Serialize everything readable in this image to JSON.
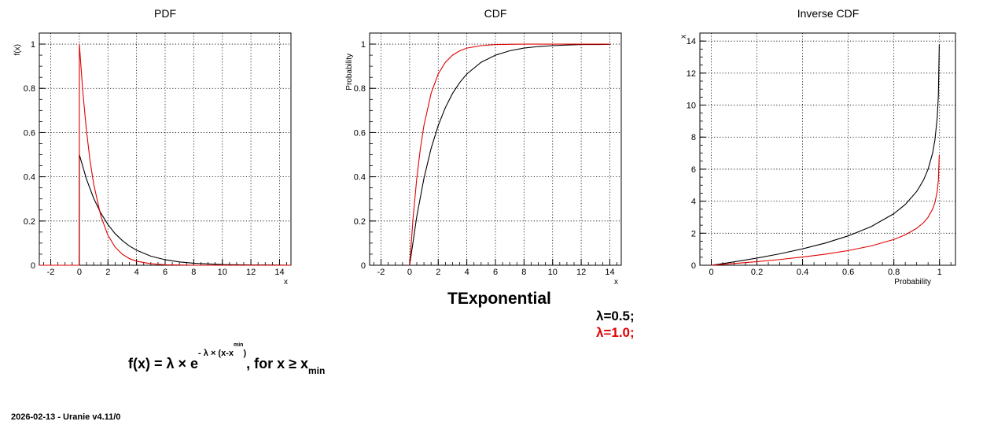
{
  "chart_data": [
    {
      "type": "line",
      "title": "PDF",
      "xlabel": "x",
      "ylabel": "f(x)",
      "xlim": [
        -2.8,
        14.8
      ],
      "ylim": [
        0,
        1.05
      ],
      "grid": true,
      "x_ticks": [
        -2,
        0,
        2,
        4,
        6,
        8,
        10,
        12,
        14
      ],
      "y_ticks": [
        0,
        0.2,
        0.4,
        0.6,
        0.8,
        1
      ],
      "y_tick_labels": [
        "0",
        "0.2",
        "0.4",
        "0.6",
        "0.8",
        "1"
      ],
      "series": [
        {
          "color": "#000000",
          "x": [
            -2.8,
            -0.01,
            0,
            0.5,
            1,
            1.5,
            2,
            2.5,
            3,
            3.5,
            4,
            5,
            6,
            7,
            8,
            9,
            10,
            11,
            12,
            13,
            14,
            14.8
          ],
          "y": [
            0,
            0,
            0.5,
            0.389,
            0.303,
            0.236,
            0.184,
            0.143,
            0.112,
            0.087,
            0.068,
            0.041,
            0.025,
            0.015,
            0.009,
            0.006,
            0.003,
            0.002,
            0.001,
            0.001,
            0.0005,
            0
          ]
        },
        {
          "color": "#e00000",
          "x": [
            -2.8,
            -0.01,
            0,
            0.25,
            0.5,
            0.75,
            1,
            1.5,
            2,
            2.5,
            3,
            3.5,
            4,
            5,
            6,
            7,
            8,
            10,
            12,
            14,
            14.8
          ],
          "y": [
            0,
            0,
            1,
            0.779,
            0.607,
            0.472,
            0.368,
            0.223,
            0.135,
            0.082,
            0.05,
            0.03,
            0.018,
            0.007,
            0.002,
            0.001,
            0,
            0,
            0,
            0,
            0
          ]
        }
      ]
    },
    {
      "type": "line",
      "title": "CDF",
      "xlabel": "x",
      "ylabel": "Probability",
      "xlim": [
        -2.8,
        14.8
      ],
      "ylim": [
        0,
        1.05
      ],
      "grid": true,
      "x_ticks": [
        -2,
        0,
        2,
        4,
        6,
        8,
        10,
        12,
        14
      ],
      "y_ticks": [
        0,
        0.2,
        0.4,
        0.6,
        0.8,
        1
      ],
      "y_tick_labels": [
        "0",
        "0.2",
        "0.4",
        "0.6",
        "0.8",
        "1"
      ],
      "series": [
        {
          "color": "#000000",
          "x": [
            0,
            0.5,
            1,
            1.5,
            2,
            2.5,
            3,
            3.5,
            4,
            5,
            6,
            7,
            8,
            9,
            10,
            11,
            12,
            13,
            14
          ],
          "y": [
            0,
            0.221,
            0.393,
            0.528,
            0.632,
            0.713,
            0.777,
            0.826,
            0.865,
            0.918,
            0.95,
            0.97,
            0.982,
            0.989,
            0.993,
            0.996,
            0.998,
            0.998,
            0.999
          ]
        },
        {
          "color": "#e00000",
          "x": [
            0,
            0.25,
            0.5,
            0.75,
            1,
            1.5,
            2,
            2.5,
            3,
            3.5,
            4,
            5,
            6,
            7,
            8,
            10,
            12,
            14
          ],
          "y": [
            0,
            0.221,
            0.393,
            0.528,
            0.632,
            0.777,
            0.865,
            0.918,
            0.95,
            0.97,
            0.982,
            0.993,
            0.998,
            0.999,
            1,
            1,
            1,
            1
          ]
        }
      ]
    },
    {
      "type": "line",
      "title": "Inverse CDF",
      "xlabel": "Probability",
      "ylabel": "x",
      "xlim": [
        -0.05,
        1.07
      ],
      "ylim": [
        0,
        14.5
      ],
      "grid": true,
      "x_ticks": [
        0,
        0.2,
        0.4,
        0.6,
        0.8,
        1
      ],
      "x_tick_labels": [
        "0",
        "0.2",
        "0.4",
        "0.6",
        "0.8",
        "1"
      ],
      "y_ticks": [
        0,
        2,
        4,
        6,
        8,
        10,
        12,
        14
      ],
      "series": [
        {
          "color": "#000000",
          "x": [
            0,
            0.05,
            0.1,
            0.2,
            0.3,
            0.4,
            0.5,
            0.6,
            0.7,
            0.8,
            0.85,
            0.9,
            0.93,
            0.95,
            0.97,
            0.98,
            0.99,
            0.995,
            0.999
          ],
          "y": [
            0,
            0.103,
            0.211,
            0.446,
            0.713,
            1.022,
            1.386,
            1.833,
            2.408,
            3.219,
            3.794,
            4.605,
            5.318,
            5.991,
            7.013,
            7.824,
            9.21,
            10.6,
            13.8
          ]
        },
        {
          "color": "#e00000",
          "x": [
            0,
            0.05,
            0.1,
            0.2,
            0.3,
            0.4,
            0.5,
            0.6,
            0.7,
            0.8,
            0.85,
            0.9,
            0.93,
            0.95,
            0.97,
            0.98,
            0.99,
            0.995,
            0.999
          ],
          "y": [
            0,
            0.051,
            0.105,
            0.223,
            0.357,
            0.511,
            0.693,
            0.916,
            1.204,
            1.609,
            1.897,
            2.303,
            2.659,
            2.996,
            3.507,
            3.912,
            4.605,
            5.298,
            6.9
          ]
        }
      ]
    }
  ],
  "main_title": "TExponential",
  "legend": [
    {
      "label": "λ=0.5;",
      "color": "#000000"
    },
    {
      "label": "λ=1.0;",
      "color": "#e00000"
    }
  ],
  "formula": {
    "lhs": "f(x) = λ × e",
    "exponent_main": "- λ × (x-x",
    "exponent_sub": "min",
    "exponent_close": ")",
    "tail": ", for x ≥ x",
    "tail_sub": "min"
  },
  "footer": "2026-02-13 - Uranie v4.11/0"
}
